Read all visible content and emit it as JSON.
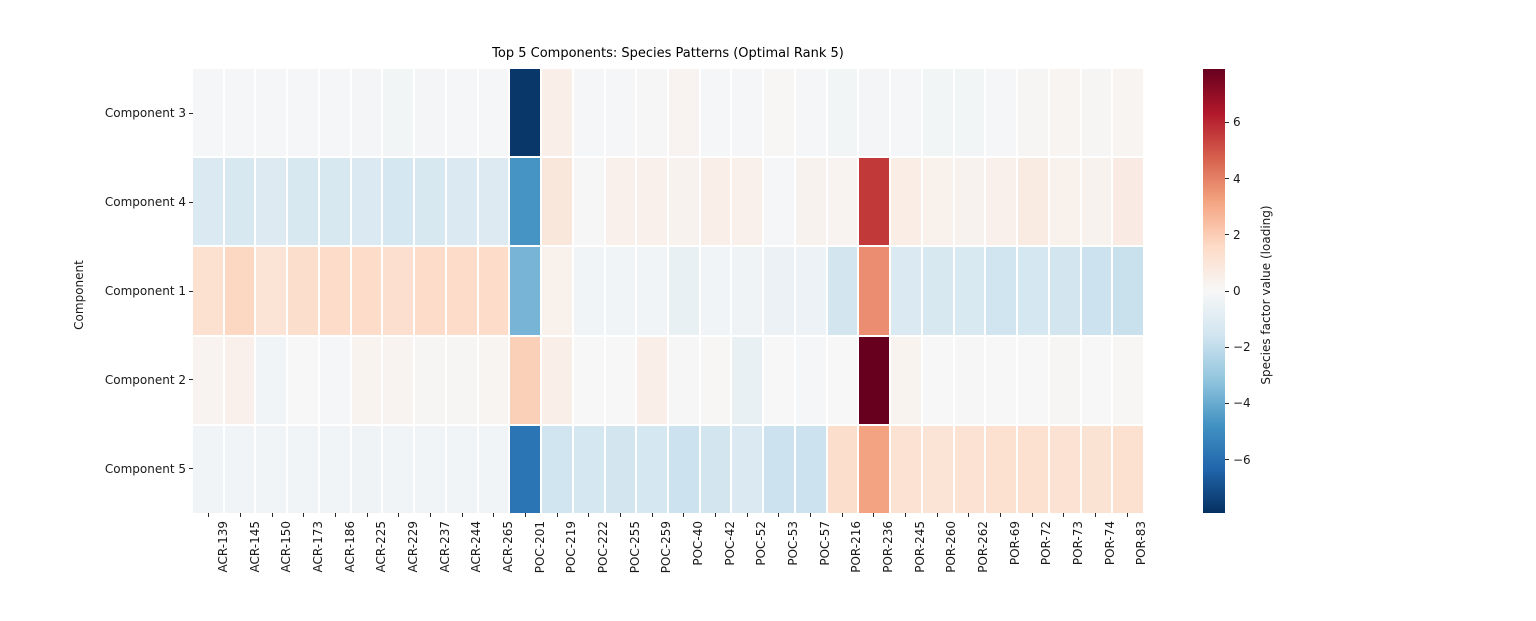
{
  "title": "Top 5 Components: Species Patterns (Optimal Rank 5)",
  "chart_data": {
    "type": "heatmap",
    "title": "Top 5 Components: Species Patterns (Optimal Rank 5)",
    "ylabel": "Component",
    "xlabel": "",
    "rows": [
      "Component 3",
      "Component 4",
      "Component 1",
      "Component 2",
      "Component 5"
    ],
    "columns": [
      "ACR-139",
      "ACR-145",
      "ACR-150",
      "ACR-173",
      "ACR-186",
      "ACR-225",
      "ACR-229",
      "ACR-237",
      "ACR-244",
      "ACR-265",
      "POC-201",
      "POC-219",
      "POC-222",
      "POC-255",
      "POC-259",
      "POC-40",
      "POC-42",
      "POC-52",
      "POC-53",
      "POC-57",
      "POR-216",
      "POR-236",
      "POR-245",
      "POR-260",
      "POR-262",
      "POR-69",
      "POR-72",
      "POR-73",
      "POR-74",
      "POR-83"
    ],
    "values": [
      [
        -0.1,
        -0.1,
        -0.1,
        -0.1,
        -0.1,
        -0.15,
        -0.2,
        -0.15,
        -0.1,
        -0.1,
        -7.7,
        0.5,
        -0.1,
        -0.1,
        -0.05,
        0.2,
        -0.1,
        -0.1,
        0.05,
        -0.1,
        -0.2,
        -0.15,
        -0.1,
        -0.2,
        -0.2,
        -0.1,
        0.1,
        0.15,
        0.1,
        0.15
      ],
      [
        -1.2,
        -1.3,
        -1.1,
        -1.3,
        -1.3,
        -1.2,
        -1.4,
        -1.3,
        -1.2,
        -1.1,
        -4.7,
        0.9,
        -0.05,
        0.4,
        0.4,
        0.3,
        0.5,
        0.4,
        -0.1,
        0.3,
        0.2,
        5.6,
        0.55,
        0.35,
        0.3,
        0.4,
        0.7,
        0.35,
        0.3,
        0.65
      ],
      [
        1.3,
        1.7,
        1.1,
        1.4,
        1.5,
        1.5,
        1.35,
        1.5,
        1.5,
        1.5,
        -3.7,
        0.35,
        -0.3,
        -0.25,
        -0.3,
        -0.6,
        -0.3,
        -0.35,
        -0.5,
        -0.45,
        -1.5,
        3.7,
        -1.2,
        -1.3,
        -1.25,
        -1.6,
        -1.4,
        -1.5,
        -1.7,
        -1.8
      ],
      [
        0.2,
        0.4,
        -0.3,
        0.0,
        -0.1,
        0.25,
        0.2,
        0.1,
        0.1,
        0.15,
        1.9,
        0.5,
        0.0,
        0.0,
        0.5,
        -0.05,
        0.05,
        -0.6,
        0.0,
        -0.1,
        0.0,
        7.9,
        0.25,
        0.0,
        -0.05,
        0.0,
        0.0,
        0.1,
        0.0,
        0.05
      ],
      [
        -0.3,
        -0.3,
        -0.25,
        -0.3,
        -0.3,
        -0.35,
        -0.3,
        -0.3,
        -0.25,
        -0.3,
        -5.8,
        -1.6,
        -1.4,
        -1.5,
        -1.4,
        -1.7,
        -1.5,
        -1.2,
        -1.7,
        -1.7,
        1.4,
        3.2,
        1.2,
        1.1,
        1.2,
        1.3,
        1.25,
        1.2,
        1.15,
        1.3
      ]
    ],
    "vmin": -7.9,
    "vmax": 7.9,
    "colormap": "RdBu_r",
    "colormap_anchors": [
      "#053061",
      "#2166ac",
      "#4393c3",
      "#92c5de",
      "#d1e5f0",
      "#f7f7f7",
      "#fddbc7",
      "#f4a582",
      "#d6604d",
      "#b2182b",
      "#67001f"
    ],
    "grid_line_color": "#ffffff",
    "colorbar": {
      "label": "Species factor value (loading)",
      "tick_values": [
        6,
        4,
        2,
        0,
        -2,
        -4,
        -6
      ],
      "tick_labels": [
        "6",
        "4",
        "2",
        "0",
        "−2",
        "−4",
        "−6"
      ]
    },
    "legend": "colorbar-right",
    "grid": false
  }
}
